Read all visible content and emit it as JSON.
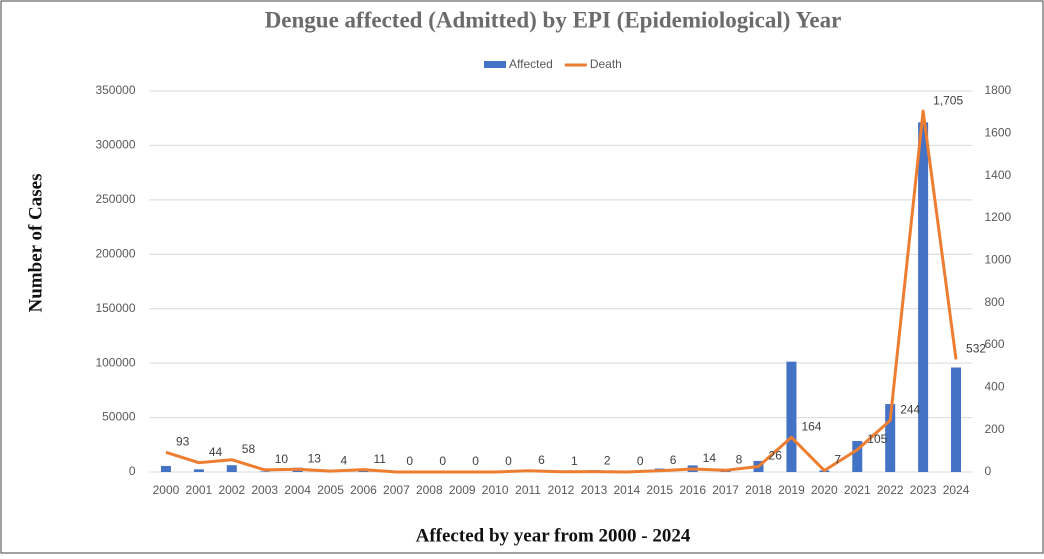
{
  "chart_data": {
    "type": "bar-line",
    "title": "Dengue affected (Admitted) by EPI (Epidemiological) Year",
    "y_label": "Number of Cases",
    "x_label": "Affected by year from 2000 - 2024",
    "categories": [
      "2000",
      "2001",
      "2002",
      "2003",
      "2004",
      "2005",
      "2006",
      "2007",
      "2008",
      "2009",
      "2010",
      "2011",
      "2012",
      "2013",
      "2014",
      "2015",
      "2016",
      "2017",
      "2018",
      "2019",
      "2020",
      "2021",
      "2022",
      "2023",
      "2024"
    ],
    "series": [
      {
        "name": "Affected",
        "type": "bar",
        "color": "#4472c4",
        "values": [
          5551,
          2430,
          6232,
          486,
          3934,
          1048,
          2200,
          466,
          1153,
          474,
          409,
          1359,
          671,
          1749,
          375,
          3162,
          6060,
          2769,
          10148,
          101354,
          1405,
          28429,
          62382,
          321179,
          96000
        ]
      },
      {
        "name": "Death",
        "type": "line",
        "axis": "y2",
        "color": "#ed7d31",
        "values": [
          93,
          44,
          58,
          10,
          13,
          4,
          11,
          0,
          0,
          0,
          0,
          6,
          1,
          2,
          0,
          6,
          14,
          8,
          26,
          164,
          7,
          105,
          244,
          1705,
          532
        ],
        "value_labels": [
          "93",
          "44",
          "58",
          "10",
          "13",
          "4",
          "11",
          "0",
          "0",
          "0",
          "0",
          "6",
          "1",
          "2",
          "0",
          "6",
          "14",
          "8",
          "26",
          "164",
          "7",
          "105",
          "244",
          "1,705",
          "532"
        ]
      }
    ],
    "ylim": [
      0,
      350000
    ],
    "yticks": [
      0,
      50000,
      100000,
      150000,
      200000,
      250000,
      300000,
      350000
    ],
    "y2lim": [
      0,
      1800
    ],
    "y2ticks": [
      0,
      200,
      400,
      600,
      800,
      1000,
      1200,
      1400,
      1600,
      1800
    ],
    "grid": true,
    "legend": "top"
  }
}
